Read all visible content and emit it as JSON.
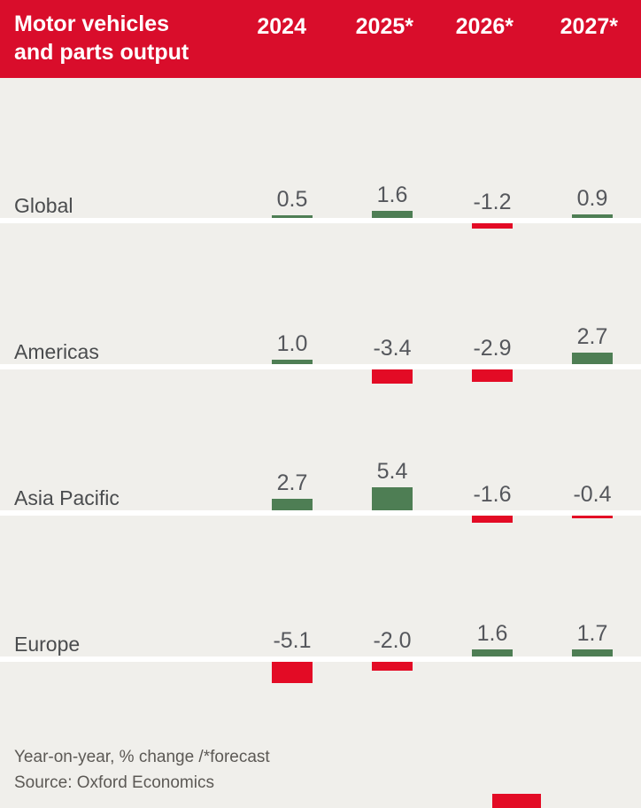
{
  "header": {
    "title_line1": "Motor vehicles",
    "title_line2": "and parts output",
    "background": "#d90d2b",
    "text_color": "#ffffff"
  },
  "chart_data": {
    "type": "bar",
    "title": "Motor vehicles and parts output",
    "subtitle": "Year-on-year, % change /*forecast",
    "categories": [
      "2024",
      "2025*",
      "2026*",
      "2027*"
    ],
    "series": [
      {
        "name": "Global",
        "values": [
          0.5,
          1.6,
          -1.2,
          0.9
        ]
      },
      {
        "name": "Americas",
        "values": [
          1.0,
          -3.4,
          -2.9,
          2.7
        ]
      },
      {
        "name": "Asia Pacific",
        "values": [
          2.7,
          5.4,
          -1.6,
          -0.4
        ]
      },
      {
        "name": "Europe",
        "values": [
          -5.1,
          -2.0,
          1.6,
          1.7
        ]
      }
    ],
    "ylabel": "Year-on-year % change",
    "grid": "off",
    "legend": "none",
    "baseline": 0,
    "positive_color": "#4e7e54",
    "negative_color": "#e30b25",
    "value_labels": "shown above bars, one decimal"
  },
  "footer": {
    "note": "Year-on-year, % change /*forecast",
    "source": "Source: Oxford Economics"
  }
}
